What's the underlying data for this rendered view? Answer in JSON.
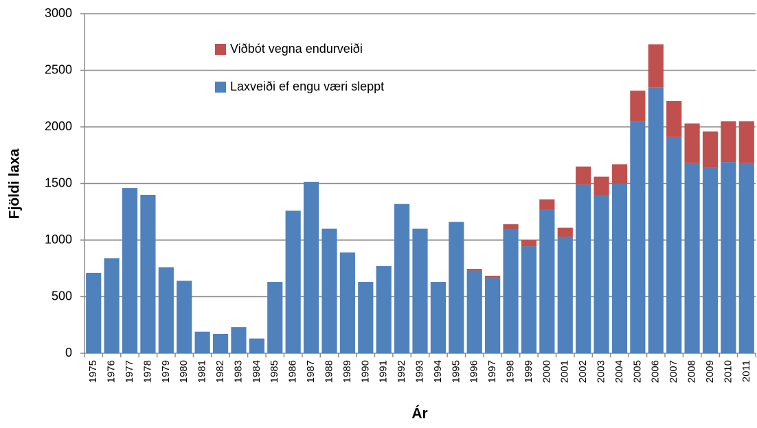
{
  "chart_data": {
    "type": "stacked_bar",
    "x_label": "Ár",
    "y_label": "Fjöldi laxa",
    "categories": [
      "1975",
      "1976",
      "1977",
      "1978",
      "1979",
      "1980",
      "1981",
      "1982",
      "1983",
      "1984",
      "1985",
      "1986",
      "1987",
      "1988",
      "1989",
      "1990",
      "1991",
      "1992",
      "1993",
      "1994",
      "1995",
      "1996",
      "1997",
      "1998",
      "1999",
      "2000",
      "2001",
      "2002",
      "2003",
      "2004",
      "2005",
      "2006",
      "2007",
      "2008",
      "2009",
      "2010",
      "2011"
    ],
    "series": [
      {
        "name": "Laxveiði ef engu væri sleppt",
        "color": "#4f81bd",
        "values": [
          710,
          840,
          1460,
          1400,
          760,
          640,
          190,
          170,
          230,
          130,
          630,
          1260,
          1515,
          1100,
          890,
          630,
          770,
          1320,
          1100,
          630,
          1160,
          730,
          670,
          1100,
          945,
          1270,
          1030,
          1490,
          1400,
          1500,
          2050,
          2350,
          1910,
          1680,
          1640,
          1690,
          1680
        ]
      },
      {
        "name": "Viðbót vegna endurveiði",
        "color": "#c0504d",
        "values": [
          0,
          0,
          0,
          0,
          0,
          0,
          0,
          0,
          0,
          0,
          0,
          0,
          0,
          0,
          0,
          0,
          0,
          0,
          0,
          0,
          0,
          15,
          15,
          40,
          55,
          90,
          80,
          160,
          160,
          170,
          270,
          380,
          320,
          350,
          320,
          360,
          370
        ]
      }
    ],
    "ylim": [
      0,
      3000
    ],
    "yticks": [
      0,
      500,
      1000,
      1500,
      2000,
      2500,
      3000
    ],
    "grid": true,
    "legend": "top-left"
  }
}
